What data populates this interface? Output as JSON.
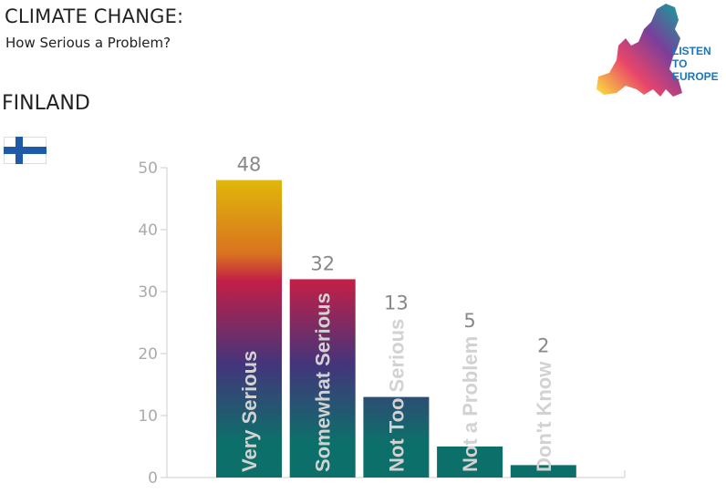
{
  "header": {
    "title": "CLIMATE CHANGE:",
    "subtitle": "How Serious a Problem?",
    "country": "FINLAND"
  },
  "logo": {
    "text_line1": "LISTEN",
    "text_line2": "TO",
    "text_line3": "EUROPE",
    "color": "#1b75bb"
  },
  "flag": {
    "icon": "finland-flag",
    "cross_color": "#1e5aa8"
  },
  "chart_data": {
    "type": "bar",
    "categories": [
      "Very Serious",
      "Somewhat Serious",
      "Not Too Serious",
      "Not a Problem",
      "Don't Know"
    ],
    "values": [
      48,
      32,
      13,
      5,
      2
    ],
    "ylim": [
      0,
      50
    ],
    "yticks": [
      0,
      10,
      20,
      30,
      40,
      50
    ],
    "grid": false,
    "gradient_colors": [
      "#e0b80a",
      "#d9721f",
      "#c21f47",
      "#43357a",
      "#0d6f6a"
    ]
  }
}
